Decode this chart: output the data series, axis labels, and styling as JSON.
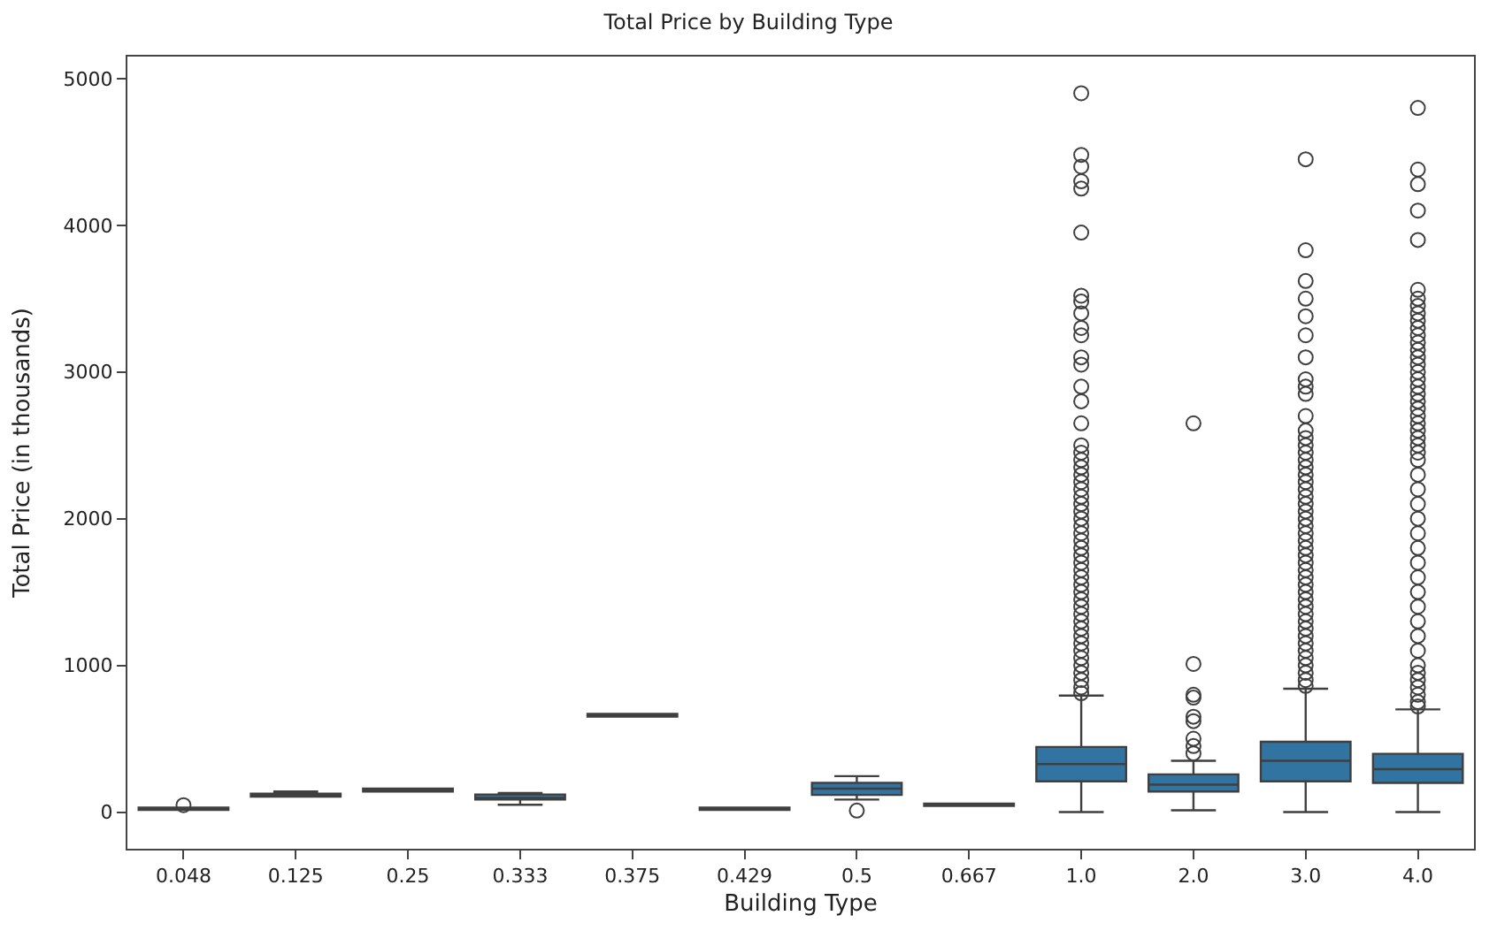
{
  "chart_data": {
    "type": "box",
    "title": "Total Price by Building Type",
    "xlabel": "Building Type",
    "ylabel": "Total Price (in thousands)",
    "categories": [
      "0.048",
      "0.125",
      "0.25",
      "0.333",
      "0.375",
      "0.429",
      "0.5",
      "0.667",
      "1.0",
      "2.0",
      "3.0",
      "4.0"
    ],
    "color": "#3274a1",
    "boxes": [
      {
        "low": 15,
        "q1": 15,
        "median": 25,
        "q3": 30,
        "high": 30,
        "outliers": [
          47
        ]
      },
      {
        "low": 105,
        "q1": 105,
        "median": 115,
        "q3": 125,
        "high": 140
      },
      {
        "low": 140,
        "q1": 140,
        "median": 150,
        "q3": 160,
        "high": 160
      },
      {
        "low": 50,
        "q1": 85,
        "median": 95,
        "q3": 120,
        "high": 130
      },
      {
        "low": 650,
        "q1": 650,
        "median": 660,
        "q3": 670,
        "high": 670
      },
      {
        "low": 15,
        "q1": 15,
        "median": 22,
        "q3": 30,
        "high": 30
      },
      {
        "low": 85,
        "q1": 117,
        "median": 160,
        "q3": 199,
        "high": 245,
        "outliers": [
          10
        ]
      },
      {
        "low": 42,
        "q1": 42,
        "median": 50,
        "q3": 58,
        "high": 58
      },
      {
        "low": 0,
        "q1": 210,
        "median": 327,
        "q3": 444,
        "high": 794,
        "outliers": [
          4900,
          4480,
          4400,
          4300,
          4250,
          3950,
          3520,
          3480,
          3400,
          3300,
          3250,
          3100,
          3050,
          2900,
          2800,
          2650,
          2500,
          2450,
          2400,
          2350,
          2300,
          2250,
          2200,
          2150,
          2100,
          2050,
          2000,
          1950,
          1900,
          1850,
          1800,
          1750,
          1700,
          1650,
          1600,
          1550,
          1500,
          1450,
          1400,
          1350,
          1300,
          1250,
          1200,
          1150,
          1100,
          1050,
          1000,
          950,
          900,
          850,
          810
        ]
      },
      {
        "low": 12,
        "q1": 140,
        "median": 187,
        "q3": 257,
        "high": 350,
        "outliers": [
          2650,
          1010,
          800,
          780,
          650,
          620,
          500,
          450,
          400
        ]
      },
      {
        "low": 0,
        "q1": 210,
        "median": 350,
        "q3": 479,
        "high": 841,
        "outliers": [
          4450,
          3830,
          3620,
          3500,
          3380,
          3250,
          3100,
          2950,
          2900,
          2850,
          2700,
          2600,
          2550,
          2500,
          2450,
          2400,
          2350,
          2300,
          2250,
          2200,
          2150,
          2100,
          2050,
          2000,
          1950,
          1900,
          1850,
          1800,
          1750,
          1700,
          1650,
          1600,
          1550,
          1500,
          1450,
          1400,
          1350,
          1300,
          1250,
          1200,
          1150,
          1100,
          1050,
          1000,
          950,
          900,
          860
        ]
      },
      {
        "low": 0,
        "q1": 199,
        "median": 292,
        "q3": 397,
        "high": 700,
        "outliers": [
          4800,
          4380,
          4280,
          4100,
          3900,
          3560,
          3500,
          3450,
          3400,
          3350,
          3300,
          3250,
          3200,
          3150,
          3100,
          3050,
          3000,
          2950,
          2900,
          2850,
          2800,
          2750,
          2700,
          2650,
          2600,
          2550,
          2500,
          2450,
          2400,
          2300,
          2200,
          2100,
          2000,
          1900,
          1800,
          1700,
          1600,
          1500,
          1400,
          1300,
          1200,
          1100,
          1000,
          950,
          900,
          850,
          800,
          750,
          720
        ]
      }
    ],
    "ylim": [
      -250,
      5150
    ],
    "yticks": [
      0,
      1000,
      2000,
      3000,
      4000,
      5000
    ],
    "marker": "circle"
  }
}
